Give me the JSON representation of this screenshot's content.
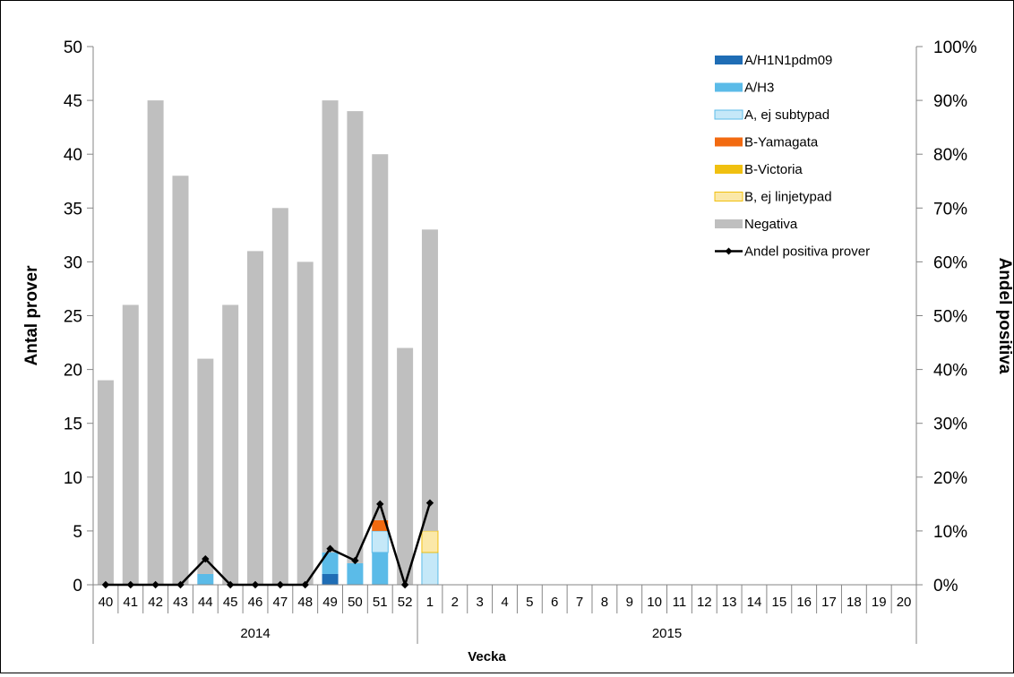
{
  "chart_data": {
    "type": "bar",
    "stacked": true,
    "categories": [
      "40",
      "41",
      "42",
      "43",
      "44",
      "45",
      "46",
      "47",
      "48",
      "49",
      "50",
      "51",
      "52",
      "1",
      "2",
      "3",
      "4",
      "5",
      "6",
      "7",
      "8",
      "9",
      "10",
      "11",
      "12",
      "13",
      "14",
      "15",
      "16",
      "17",
      "18",
      "19",
      "20"
    ],
    "groups": [
      {
        "label": "2014",
        "from": "40",
        "to": "52"
      },
      {
        "label": "2015",
        "from": "1",
        "to": "20"
      }
    ],
    "series": [
      {
        "name": "A/H1N1pdm09",
        "color": "#1f6db5",
        "values": [
          0,
          0,
          0,
          0,
          0,
          0,
          0,
          0,
          0,
          1,
          0,
          0,
          0,
          0,
          0,
          0,
          0,
          0,
          0,
          0,
          0,
          0,
          0,
          0,
          0,
          0,
          0,
          0,
          0,
          0,
          0,
          0,
          0
        ]
      },
      {
        "name": "A/H3",
        "color": "#5bbbe8",
        "values": [
          0,
          0,
          0,
          0,
          1,
          0,
          0,
          0,
          0,
          2,
          2,
          3,
          0,
          0,
          0,
          0,
          0,
          0,
          0,
          0,
          0,
          0,
          0,
          0,
          0,
          0,
          0,
          0,
          0,
          0,
          0,
          0,
          0
        ]
      },
      {
        "name": "A, ej subtypad",
        "color": "#c5e8f8",
        "values": [
          0,
          0,
          0,
          0,
          0,
          0,
          0,
          0,
          0,
          0,
          0,
          2,
          0,
          3,
          0,
          0,
          0,
          0,
          0,
          0,
          0,
          0,
          0,
          0,
          0,
          0,
          0,
          0,
          0,
          0,
          0,
          0,
          0
        ]
      },
      {
        "name": "B-Yamagata",
        "color": "#f26a10",
        "values": [
          0,
          0,
          0,
          0,
          0,
          0,
          0,
          0,
          0,
          0,
          0,
          1,
          0,
          0,
          0,
          0,
          0,
          0,
          0,
          0,
          0,
          0,
          0,
          0,
          0,
          0,
          0,
          0,
          0,
          0,
          0,
          0,
          0
        ]
      },
      {
        "name": "B-Victoria",
        "color": "#f0c010",
        "values": [
          0,
          0,
          0,
          0,
          0,
          0,
          0,
          0,
          0,
          0,
          0,
          0,
          0,
          0,
          0,
          0,
          0,
          0,
          0,
          0,
          0,
          0,
          0,
          0,
          0,
          0,
          0,
          0,
          0,
          0,
          0,
          0,
          0
        ]
      },
      {
        "name": "B, ej linjetypad",
        "color": "#fbe8a8",
        "values": [
          0,
          0,
          0,
          0,
          0,
          0,
          0,
          0,
          0,
          0,
          0,
          0,
          0,
          2,
          0,
          0,
          0,
          0,
          0,
          0,
          0,
          0,
          0,
          0,
          0,
          0,
          0,
          0,
          0,
          0,
          0,
          0,
          0
        ]
      },
      {
        "name": "Negativa",
        "color": "#bfbfbf",
        "values": [
          19,
          26,
          45,
          38,
          20,
          26,
          31,
          35,
          30,
          42,
          42,
          34,
          22,
          28,
          0,
          0,
          0,
          0,
          0,
          0,
          0,
          0,
          0,
          0,
          0,
          0,
          0,
          0,
          0,
          0,
          0,
          0,
          0
        ]
      }
    ],
    "line_series": {
      "name": "Andel positiva prover",
      "color": "#000000",
      "axis": "right",
      "values": [
        0,
        0,
        0,
        0,
        4.8,
        0,
        0,
        0,
        0,
        6.7,
        4.5,
        15,
        0,
        15.2
      ]
    },
    "xlabel": "Vecka",
    "ylabel": "Antal prover",
    "y2label": "Andel positiva",
    "ylim": [
      0,
      50
    ],
    "yticks": [
      0,
      5,
      10,
      15,
      20,
      25,
      30,
      35,
      40,
      45,
      50
    ],
    "y2lim": [
      0,
      100
    ],
    "y2ticks": [
      "0%",
      "10%",
      "20%",
      "30%",
      "40%",
      "50%",
      "60%",
      "70%",
      "80%",
      "90%",
      "100%"
    ],
    "grid": false,
    "legend_position": "top-right"
  }
}
